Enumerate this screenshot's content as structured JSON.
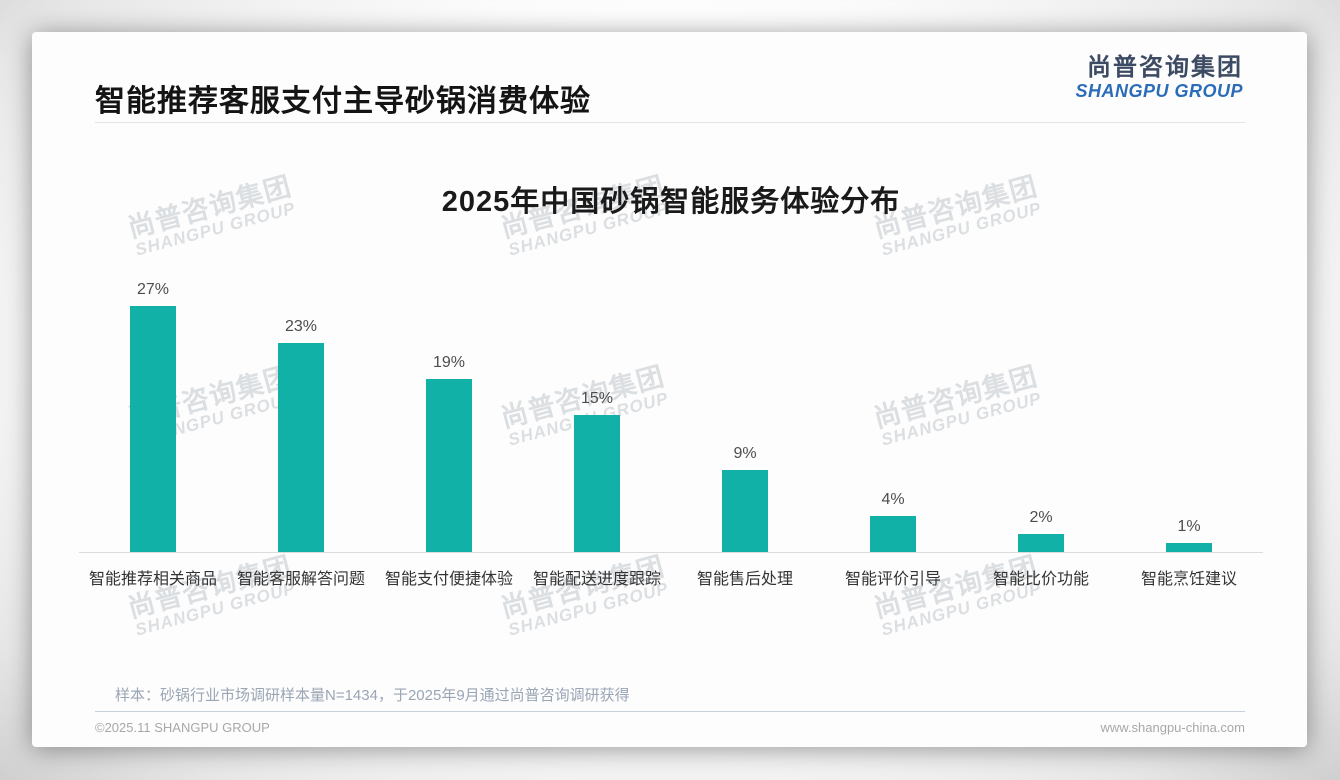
{
  "header": {
    "title": "智能推荐客服支付主导砂锅消费体验",
    "logo_cn": "尚普咨询集团",
    "logo_en": "SHANGPU GROUP"
  },
  "watermark": {
    "cn": "尚普咨询集团",
    "en": "SHANGPU GROUP"
  },
  "chart_data": {
    "type": "bar",
    "title": "2025年中国砂锅智能服务体验分布",
    "categories": [
      "智能推荐相关商品",
      "智能客服解答问题",
      "智能支付便捷体验",
      "智能配送进度跟踪",
      "智能售后处理",
      "智能评价引导",
      "智能比价功能",
      "智能烹饪建议"
    ],
    "values": [
      27,
      23,
      19,
      15,
      9,
      4,
      2,
      1
    ],
    "value_labels": [
      "27%",
      "23%",
      "19%",
      "15%",
      "9%",
      "4%",
      "2%",
      "1%"
    ],
    "unit": "%",
    "bar_color": "#12B1A8",
    "xlabel": "",
    "ylabel": "",
    "ylim": [
      0,
      30
    ],
    "grid": false,
    "legend": false
  },
  "footer": {
    "note": "样本：砂锅行业市场调研样本量N=1434，于2025年9月通过尚普咨询调研获得",
    "copyright": "©2025.11 SHANGPU GROUP",
    "website": "www.shangpu-china.com"
  }
}
